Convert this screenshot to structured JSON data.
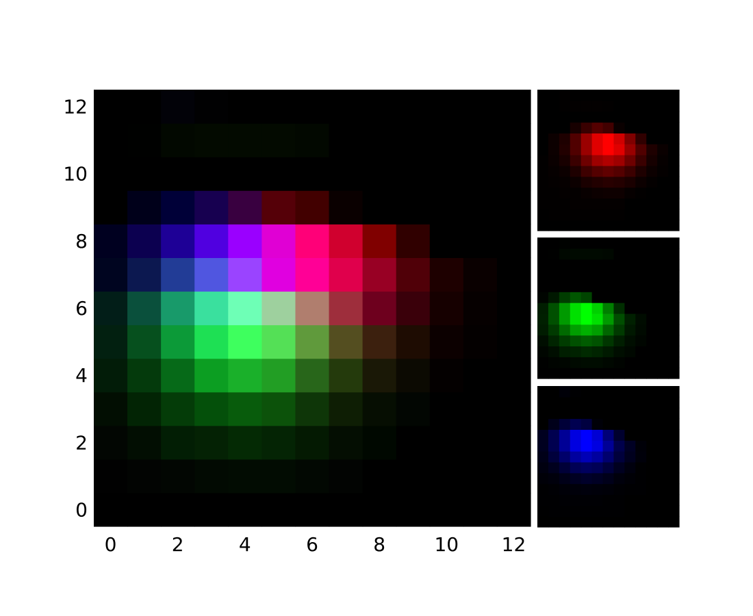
{
  "chart_data": {
    "type": "heatmap",
    "subtype": "rgb-image-with-channel-panels",
    "origin": "lower",
    "title": "",
    "xlabel": "",
    "ylabel": "",
    "xlim": [
      -0.5,
      12.5
    ],
    "ylim": [
      -0.5,
      12.5
    ],
    "x_ticks": [
      "0",
      "2",
      "4",
      "6",
      "8",
      "10",
      "12"
    ],
    "y_ticks": [
      "0",
      "2",
      "4",
      "6",
      "8",
      "10",
      "12"
    ],
    "channel_panels": [
      "red",
      "green",
      "blue"
    ],
    "pixels_rows_from_y0": [
      [
        "#000000",
        "#000000",
        "#000000",
        "#000000",
        "#000000",
        "#000000",
        "#000000",
        "#000000",
        "#000000",
        "#000000",
        "#000000",
        "#000000",
        "#000000"
      ],
      [
        "#010101",
        "#020402",
        "#020602",
        "#020a02",
        "#020c02",
        "#020c02",
        "#020802",
        "#020402",
        "#000000",
        "#000000",
        "#000000",
        "#000000",
        "#000000"
      ],
      [
        "#020602",
        "#020e02",
        "#021e04",
        "#042204",
        "#042a04",
        "#042404",
        "#041a02",
        "#040e02",
        "#000800",
        "#000000",
        "#000000",
        "#000000",
        "#000000"
      ],
      [
        "#020e02",
        "#022404",
        "#043c08",
        "#04500a",
        "#085c0c",
        "#0c520a",
        "#0e3608",
        "#0e1e04",
        "#060e02",
        "#020602",
        "#000000",
        "#000000",
        "#000000"
      ],
      [
        "#021c08",
        "#043a0c",
        "#066a18",
        "#0c9e22",
        "#1ab02a",
        "#229e24",
        "#28661a",
        "#243a0c",
        "#1a1806",
        "#0c0a02",
        "#040000",
        "#000000",
        "#000000"
      ],
      [
        "#022010",
        "#06501e",
        "#0c9a38",
        "#1ee054",
        "#3eff5e",
        "#54e056",
        "#609a3c",
        "#544e20",
        "#3c200e",
        "#1e0c02",
        "#0c0000",
        "#040000",
        "#000000"
      ],
      [
        "#021e18",
        "#0a503c",
        "#189a6a",
        "#3ae09e",
        "#6effb6",
        "#9ed09e",
        "#b07e6e",
        "#9e2e3c",
        "#6e001e",
        "#3a000a",
        "#160000",
        "#060000",
        "#000000"
      ],
      [
        "#000520",
        "#0c1850",
        "#223c96",
        "#5056e0",
        "#9a44ff",
        "#e000e0",
        "#ff0096",
        "#e0004c",
        "#980024",
        "#500008",
        "#1e0000",
        "#0a0000",
        "#000000"
      ],
      [
        "#000020",
        "#0c0050",
        "#1e0096",
        "#5000e0",
        "#9a00ff",
        "#e000d4",
        "#ff0078",
        "#d0002e",
        "#800000",
        "#300000",
        "#000000",
        "#000000",
        "#000000"
      ],
      [
        "#000000",
        "#00001a",
        "#000038",
        "#170050",
        "#390040",
        "#550008",
        "#420000",
        "#0a0000",
        "#000000",
        "#000000",
        "#000000",
        "#000000",
        "#000000"
      ],
      [
        "#000000",
        "#000000",
        "#000000",
        "#000000",
        "#000000",
        "#000000",
        "#000000",
        "#000000",
        "#000000",
        "#000000",
        "#000000",
        "#000000",
        "#000000"
      ],
      [
        "#000000",
        "#000100",
        "#020800",
        "#030a00",
        "#030a00",
        "#030a00",
        "#020800",
        "#000000",
        "#000000",
        "#000000",
        "#000000",
        "#000000",
        "#000000"
      ],
      [
        "#000000",
        "#000000",
        "#020208",
        "#010102",
        "#000000",
        "#000000",
        "#000000",
        "#000000",
        "#000000",
        "#000000",
        "#000000",
        "#000000",
        "#000000"
      ]
    ]
  }
}
